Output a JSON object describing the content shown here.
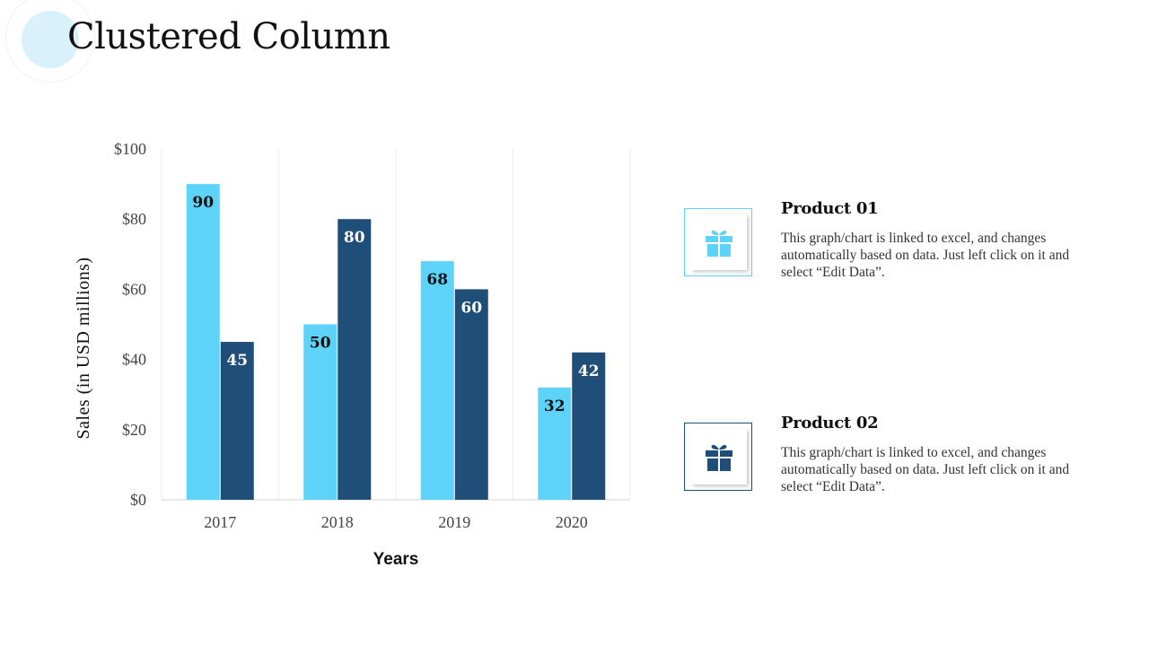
{
  "page": {
    "title": "Clustered Column"
  },
  "colors": {
    "series1": "#5dd3fa",
    "series2": "#1f4e79",
    "light_bg": "#d8f1fb"
  },
  "chart_data": {
    "type": "bar",
    "categories": [
      "2017",
      "2018",
      "2019",
      "2020"
    ],
    "series": [
      {
        "name": "Product 01",
        "values": [
          90,
          50,
          68,
          32
        ]
      },
      {
        "name": "Product 02",
        "values": [
          45,
          80,
          60,
          42
        ]
      }
    ],
    "ylim": [
      0,
      100
    ],
    "yticks": [
      0,
      20,
      40,
      60,
      80,
      100
    ],
    "ytick_labels": [
      "$0",
      "$20",
      "$40",
      "$60",
      "$80",
      "$100"
    ],
    "xlabel": "Years",
    "ylabel": "Sales (in USD millions)",
    "grid": true,
    "legend": "right"
  },
  "legend": {
    "items": [
      {
        "title": "Product 01",
        "icon": "gift-icon",
        "description": "This graph/chart is linked to excel, and changes automatically based on data. Just left click on it and select “Edit Data”."
      },
      {
        "title": "Product 02",
        "icon": "gift-icon",
        "description": "This graph/chart is linked to excel, and changes automatically based on data. Just left click on it and select “Edit Data”."
      }
    ]
  }
}
